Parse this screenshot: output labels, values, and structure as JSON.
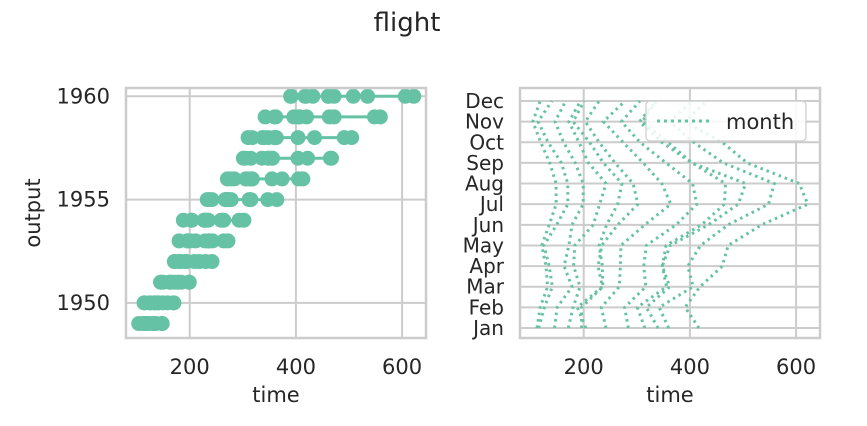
{
  "figure": {
    "title": "flight",
    "accent_color": "#66c2a5",
    "grid_color": "#cccccc"
  },
  "chart_data": [
    {
      "type": "line",
      "style": "connected lines with large circle markers",
      "xlabel": "time",
      "ylabel": "output",
      "xlim": [
        80,
        645
      ],
      "ylim": [
        1948.3,
        1960.4
      ],
      "xticks": [
        "200",
        "400",
        "600"
      ],
      "yticks": [
        "1950",
        "1955",
        "1960"
      ],
      "grid": true,
      "series": [
        {
          "year": 1949,
          "x": [
            112,
            118,
            132,
            129,
            121,
            135,
            148,
            148,
            136,
            119,
            104,
            118
          ]
        },
        {
          "year": 1950,
          "x": [
            115,
            126,
            141,
            135,
            125,
            149,
            170,
            170,
            158,
            133,
            114,
            140
          ]
        },
        {
          "year": 1951,
          "x": [
            145,
            150,
            178,
            163,
            172,
            178,
            199,
            199,
            184,
            162,
            146,
            166
          ]
        },
        {
          "year": 1952,
          "x": [
            171,
            180,
            193,
            181,
            183,
            218,
            230,
            242,
            209,
            191,
            172,
            194
          ]
        },
        {
          "year": 1953,
          "x": [
            196,
            196,
            236,
            235,
            229,
            243,
            264,
            272,
            237,
            211,
            180,
            201
          ]
        },
        {
          "year": 1954,
          "x": [
            204,
            188,
            235,
            227,
            234,
            264,
            302,
            293,
            259,
            229,
            203,
            229
          ]
        },
        {
          "year": 1955,
          "x": [
            242,
            233,
            267,
            269,
            270,
            315,
            364,
            347,
            312,
            274,
            237,
            278
          ]
        },
        {
          "year": 1956,
          "x": [
            284,
            277,
            317,
            313,
            318,
            374,
            413,
            405,
            355,
            306,
            271,
            306
          ]
        },
        {
          "year": 1957,
          "x": [
            315,
            301,
            356,
            348,
            355,
            422,
            465,
            467,
            404,
            347,
            305,
            336
          ]
        },
        {
          "year": 1958,
          "x": [
            340,
            318,
            362,
            348,
            363,
            435,
            491,
            505,
            404,
            359,
            310,
            337
          ]
        },
        {
          "year": 1959,
          "x": [
            360,
            342,
            406,
            396,
            420,
            472,
            548,
            559,
            463,
            407,
            362,
            405
          ]
        },
        {
          "year": 1960,
          "x": [
            417,
            391,
            419,
            461,
            472,
            535,
            622,
            606,
            508,
            461,
            390,
            432
          ]
        }
      ]
    },
    {
      "type": "line",
      "style": "dotted lines, one per year, months on y axis",
      "xlabel": "time",
      "ylabel": "",
      "xlim": [
        80,
        645
      ],
      "xticks": [
        "200",
        "400",
        "600"
      ],
      "categories": [
        "Jan",
        "Feb",
        "Mar",
        "Apr",
        "May",
        "Jun",
        "Jul",
        "Aug",
        "Sep",
        "Oct",
        "Nov",
        "Dec"
      ],
      "grid": true,
      "legend": {
        "entries": [
          "month"
        ],
        "placement": "top-right"
      }
    }
  ]
}
